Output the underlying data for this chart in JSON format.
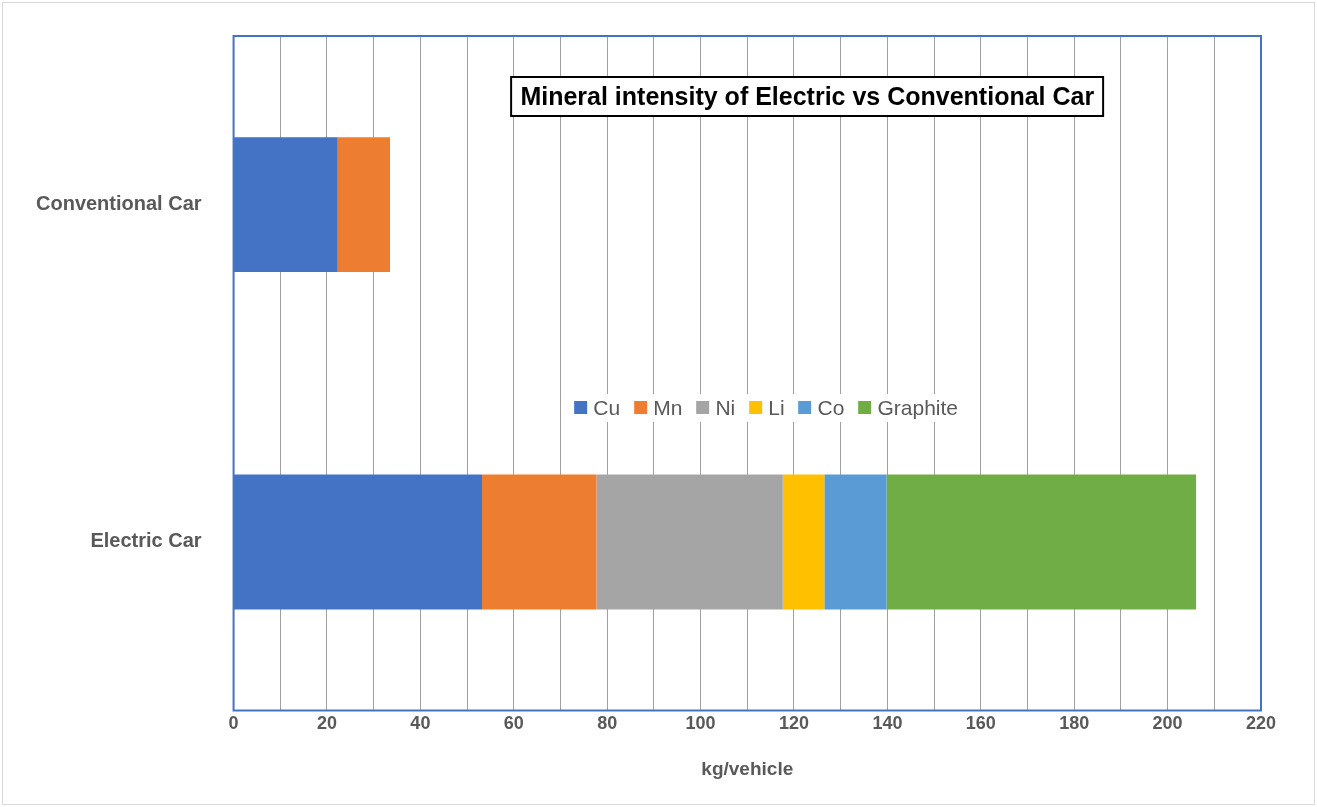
{
  "chart_data": {
    "type": "bar",
    "orientation": "horizontal",
    "stacked": true,
    "title": "Mineral intensity of Electric vs Conventional Car",
    "xlabel": "kg/vehicle",
    "categories": [
      "Conventional Car",
      "Electric Car"
    ],
    "series": [
      {
        "name": "Cu",
        "color": "#4472c4",
        "values": [
          22.3,
          53.2
        ]
      },
      {
        "name": "Mn",
        "color": "#ed7d31",
        "values": [
          11.2,
          24.5
        ]
      },
      {
        "name": "Ni",
        "color": "#a5a5a5",
        "values": [
          null,
          39.9
        ]
      },
      {
        "name": "Li",
        "color": "#ffc000",
        "values": [
          null,
          8.9
        ]
      },
      {
        "name": "Co",
        "color": "#5b9bd5",
        "values": [
          null,
          13.3
        ]
      },
      {
        "name": "Graphite",
        "color": "#70ad47",
        "values": [
          null,
          66.3
        ]
      }
    ],
    "xlim": [
      0,
      220
    ],
    "xticks": [
      0,
      {
        "value": 10,
        "label": null
      },
      20,
      {
        "value": 30,
        "label": null
      },
      40,
      {
        "value": 50,
        "label": null
      },
      60,
      {
        "value": 70,
        "label": null
      },
      80,
      {
        "value": 90,
        "label": null
      },
      100,
      {
        "value": 110,
        "label": null
      },
      120,
      {
        "value": 130,
        "label": null
      },
      140,
      {
        "value": 150,
        "label": null
      },
      160,
      {
        "value": 170,
        "label": null
      },
      180,
      {
        "value": 190,
        "label": null
      },
      200,
      {
        "value": 210,
        "label": null
      },
      220
    ],
    "grid": "x",
    "legend": "center"
  }
}
